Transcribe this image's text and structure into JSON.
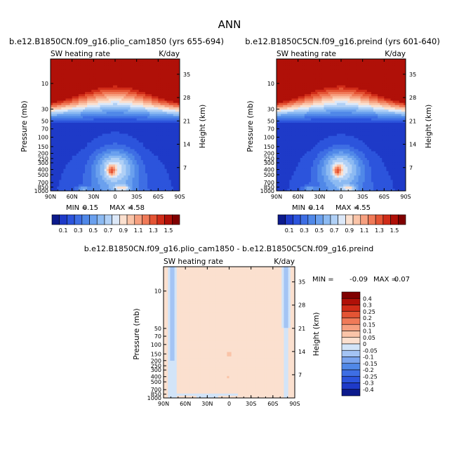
{
  "figure_title": "ANN",
  "colors": {
    "abs_scale": [
      "#0c1a8c",
      "#1e3ac8",
      "#2c54dc",
      "#3e6ee4",
      "#5088e8",
      "#6aa0ee",
      "#8cbaf2",
      "#b0d0f6",
      "#dce8f8",
      "#fbe0cf",
      "#fac4a8",
      "#f6a080",
      "#f07a58",
      "#e45434",
      "#d02c18",
      "#b01008",
      "#800000"
    ],
    "diff_scale": [
      "#0c1a8c",
      "#1e3ac8",
      "#2c54dc",
      "#3e6ee4",
      "#5088e8",
      "#7aa4ee",
      "#a4c4f4",
      "#d2e4f8",
      "#fbe0cf",
      "#fac4a8",
      "#f6a080",
      "#f07a58",
      "#e45434",
      "#d02c18",
      "#b01008",
      "#800000"
    ]
  },
  "chart_data": [
    {
      "type": "heatmap",
      "name": "plio",
      "title": "b.e12.B1850CN.f09_g16.plio_cam1850 (yrs 655-694)",
      "field_label": "SW heating rate",
      "units": "K/day",
      "ylabel": "Pressure (mb)",
      "ylabel_right": "Height (km)",
      "x_ticks": [
        "90N",
        "60N",
        "30N",
        "0",
        "30S",
        "60S",
        "90S"
      ],
      "x_range": [
        90,
        -90
      ],
      "y_ticks": [
        10,
        30,
        50,
        70,
        100,
        150,
        200,
        250,
        300,
        400,
        500,
        700,
        850,
        1000
      ],
      "y_range_mb": [
        3.5,
        1000
      ],
      "height_ticks_km": [
        35,
        28,
        21,
        14,
        7
      ],
      "min_label": "MIN =",
      "min": "0.15",
      "max_label": "MAX =",
      "max": "4.58",
      "colorbar_labels": [
        "0.1",
        "0.3",
        "0.5",
        "0.7",
        "0.9",
        "1.1",
        "1.3",
        "1.5"
      ],
      "colorbar_levels": [
        0.1,
        0.2,
        0.3,
        0.4,
        0.5,
        0.6,
        0.7,
        0.8,
        0.9,
        1.0,
        1.1,
        1.2,
        1.3,
        1.4,
        1.5
      ]
    },
    {
      "type": "heatmap",
      "name": "preind",
      "title": "b.e12.B1850C5CN.f09_g16.preind (yrs 601-640)",
      "field_label": "SW heating rate",
      "units": "K/day",
      "ylabel": "Pressure (mb)",
      "ylabel_right": "Height (km)",
      "x_ticks": [
        "90N",
        "60N",
        "30N",
        "0",
        "30S",
        "60S",
        "90S"
      ],
      "x_range": [
        90,
        -90
      ],
      "y_ticks": [
        10,
        30,
        50,
        70,
        100,
        150,
        200,
        250,
        300,
        400,
        500,
        700,
        850,
        1000
      ],
      "y_range_mb": [
        3.5,
        1000
      ],
      "height_ticks_km": [
        35,
        28,
        21,
        14,
        7
      ],
      "min_label": "MIN =",
      "min": "0.14",
      "max_label": "MAX =",
      "max": "4.55",
      "colorbar_labels": [
        "0.1",
        "0.3",
        "0.5",
        "0.7",
        "0.9",
        "1.1",
        "1.3",
        "1.5"
      ],
      "colorbar_levels": [
        0.1,
        0.2,
        0.3,
        0.4,
        0.5,
        0.6,
        0.7,
        0.8,
        0.9,
        1.0,
        1.1,
        1.2,
        1.3,
        1.4,
        1.5
      ]
    },
    {
      "type": "heatmap",
      "name": "diff",
      "title": "b.e12.B1850CN.f09_g16.plio_cam1850 - b.e12.B1850C5CN.f09_g16.preind",
      "field_label": "SW heating rate",
      "units": "K/day",
      "ylabel": "Pressure (mb)",
      "ylabel_right": "Height (km)",
      "x_ticks": [
        "90N",
        "60N",
        "30N",
        "0",
        "30S",
        "60S",
        "90S"
      ],
      "x_range": [
        90,
        -90
      ],
      "y_ticks": [
        10,
        50,
        70,
        100,
        150,
        200,
        250,
        300,
        400,
        500,
        700,
        850,
        1000
      ],
      "y_range_mb": [
        3.5,
        1000
      ],
      "height_ticks_km": [
        35,
        28,
        21,
        14,
        7
      ],
      "min_label": "MIN =",
      "min": "-0.09",
      "max_label": "MAX =",
      "max": "0.07",
      "colorbar_labels": [
        "0.4",
        "0.3",
        "0.25",
        "0.2",
        "0.15",
        "0.1",
        "0.05",
        "0",
        "-0.05",
        "-0.1",
        "-0.15",
        "-0.2",
        "-0.25",
        "-0.3",
        "-0.4"
      ],
      "colorbar_levels": [
        -0.4,
        -0.3,
        -0.25,
        -0.2,
        -0.15,
        -0.1,
        -0.05,
        0,
        0.05,
        0.1,
        0.15,
        0.2,
        0.25,
        0.3,
        0.4
      ]
    }
  ]
}
